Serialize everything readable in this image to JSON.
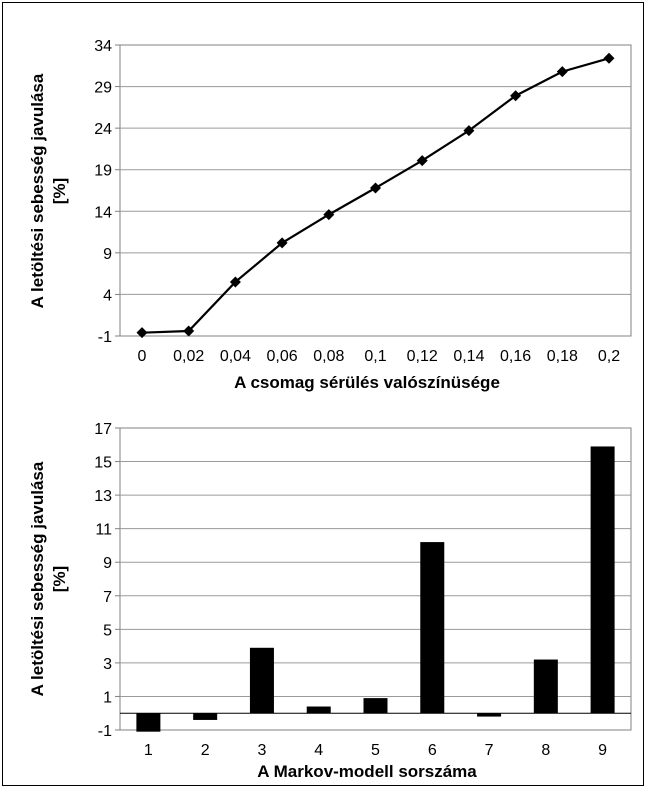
{
  "charts": [
    {
      "type": "line",
      "xlabel": "A csomag sérülés valószínüsége",
      "ylabel_line1": "A letöltési sebesség javulása",
      "ylabel_line2": "[%]",
      "categories": [
        "0",
        "0,02",
        "0,04",
        "0,06",
        "0,08",
        "0,1",
        "0,12",
        "0,14",
        "0,16",
        "0,18",
        "0,2"
      ],
      "x": [
        0,
        0.02,
        0.04,
        0.06,
        0.08,
        0.1,
        0.12,
        0.14,
        0.16,
        0.18,
        0.2
      ],
      "values": [
        -0.6,
        -0.4,
        5.5,
        10.2,
        13.6,
        16.8,
        20.1,
        23.7,
        27.9,
        30.8,
        32.4
      ],
      "yticks": [
        "34",
        "29",
        "24",
        "19",
        "14",
        "9",
        "4",
        "-1"
      ],
      "ylim": [
        -1,
        34
      ],
      "grid": true,
      "marker": "diamond",
      "color": "#000000"
    },
    {
      "type": "bar",
      "xlabel": "A Markov-modell sorszáma",
      "ylabel_line1": "A letöltési sebesség javulása",
      "ylabel_line2": "[%]",
      "categories": [
        "1",
        "2",
        "3",
        "4",
        "5",
        "6",
        "7",
        "8",
        "9"
      ],
      "values": [
        -1.1,
        -0.4,
        3.9,
        0.4,
        0.9,
        10.2,
        -0.2,
        3.2,
        15.9
      ],
      "yticks": [
        "17",
        "15",
        "13",
        "11",
        "9",
        "7",
        "5",
        "3",
        "1",
        "-1"
      ],
      "ylim": [
        -1,
        17
      ],
      "grid": true,
      "color": "#000000"
    }
  ]
}
